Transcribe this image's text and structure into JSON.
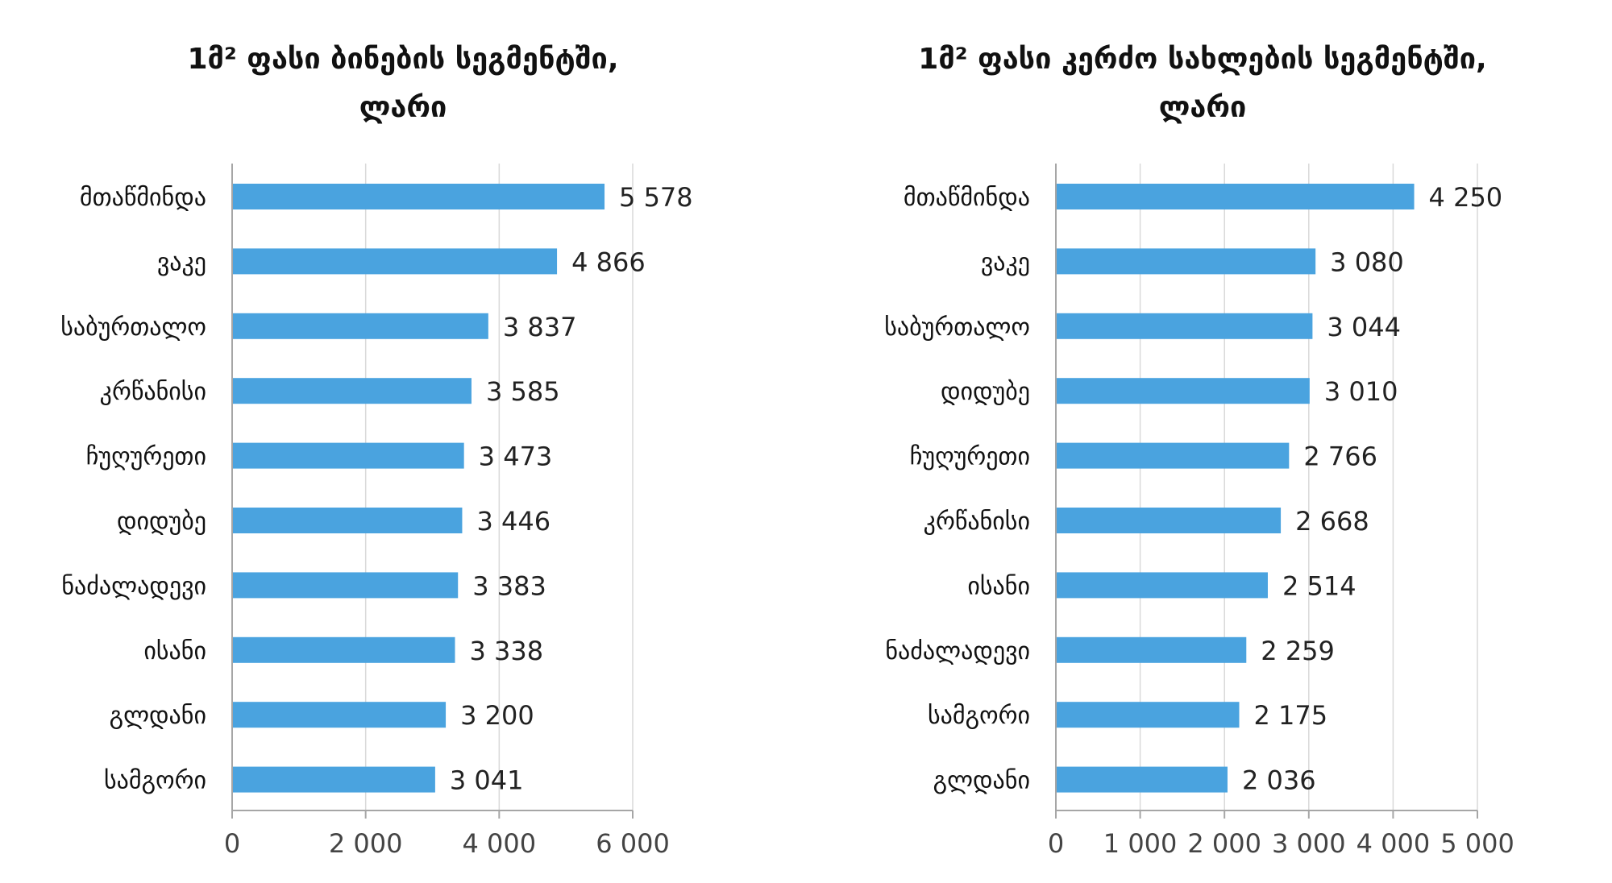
{
  "colors": {
    "bar": "#4aa3df",
    "grid": "#d9d9d9",
    "axis": "#a6a6a6"
  },
  "chart_data": [
    {
      "type": "bar",
      "orientation": "horizontal",
      "title_line1": "1მ² ფასი ბინების სეგმენტში,",
      "title_line2": "ლარი",
      "categories": [
        "მთაწმინდა",
        "ვაკე",
        "საბურთალო",
        "კრწანისი",
        "ჩუღურეთი",
        "დიდუბე",
        "ნაძალადევი",
        "ისანი",
        "გლდანი",
        "სამგორი"
      ],
      "values": [
        5578,
        4866,
        3837,
        3585,
        3473,
        3446,
        3383,
        3338,
        3200,
        3041
      ],
      "value_labels": [
        "5 578",
        "4 866",
        "3 837",
        "3 585",
        "3 473",
        "3 446",
        "3 383",
        "3 338",
        "3 200",
        "3 041"
      ],
      "xlim": [
        0,
        6000
      ],
      "ticks": [
        0,
        2000,
        4000,
        6000
      ],
      "tick_labels": [
        "0",
        "2 000",
        "4 000",
        "6 000"
      ],
      "grid": true
    },
    {
      "type": "bar",
      "orientation": "horizontal",
      "title_line1": "1მ² ფასი კერძო სახლების სეგმენტში,",
      "title_line2": "ლარი",
      "categories": [
        "მთაწმინდა",
        "ვაკე",
        "საბურთალო",
        "დიდუბე",
        "ჩუღურეთი",
        "კრწანისი",
        "ისანი",
        "ნაძალადევი",
        "სამგორი",
        "გლდანი"
      ],
      "values": [
        4250,
        3080,
        3044,
        3010,
        2766,
        2668,
        2514,
        2259,
        2175,
        2036
      ],
      "value_labels": [
        "4 250",
        "3 080",
        "3 044",
        "3 010",
        "2 766",
        "2 668",
        "2 514",
        "2 259",
        "2 175",
        "2 036"
      ],
      "xlim": [
        0,
        5000
      ],
      "ticks": [
        0,
        1000,
        2000,
        3000,
        4000,
        5000
      ],
      "tick_labels": [
        "0",
        "1 000",
        "2 000",
        "3 000",
        "4 000",
        "5 000"
      ],
      "grid": true
    }
  ]
}
